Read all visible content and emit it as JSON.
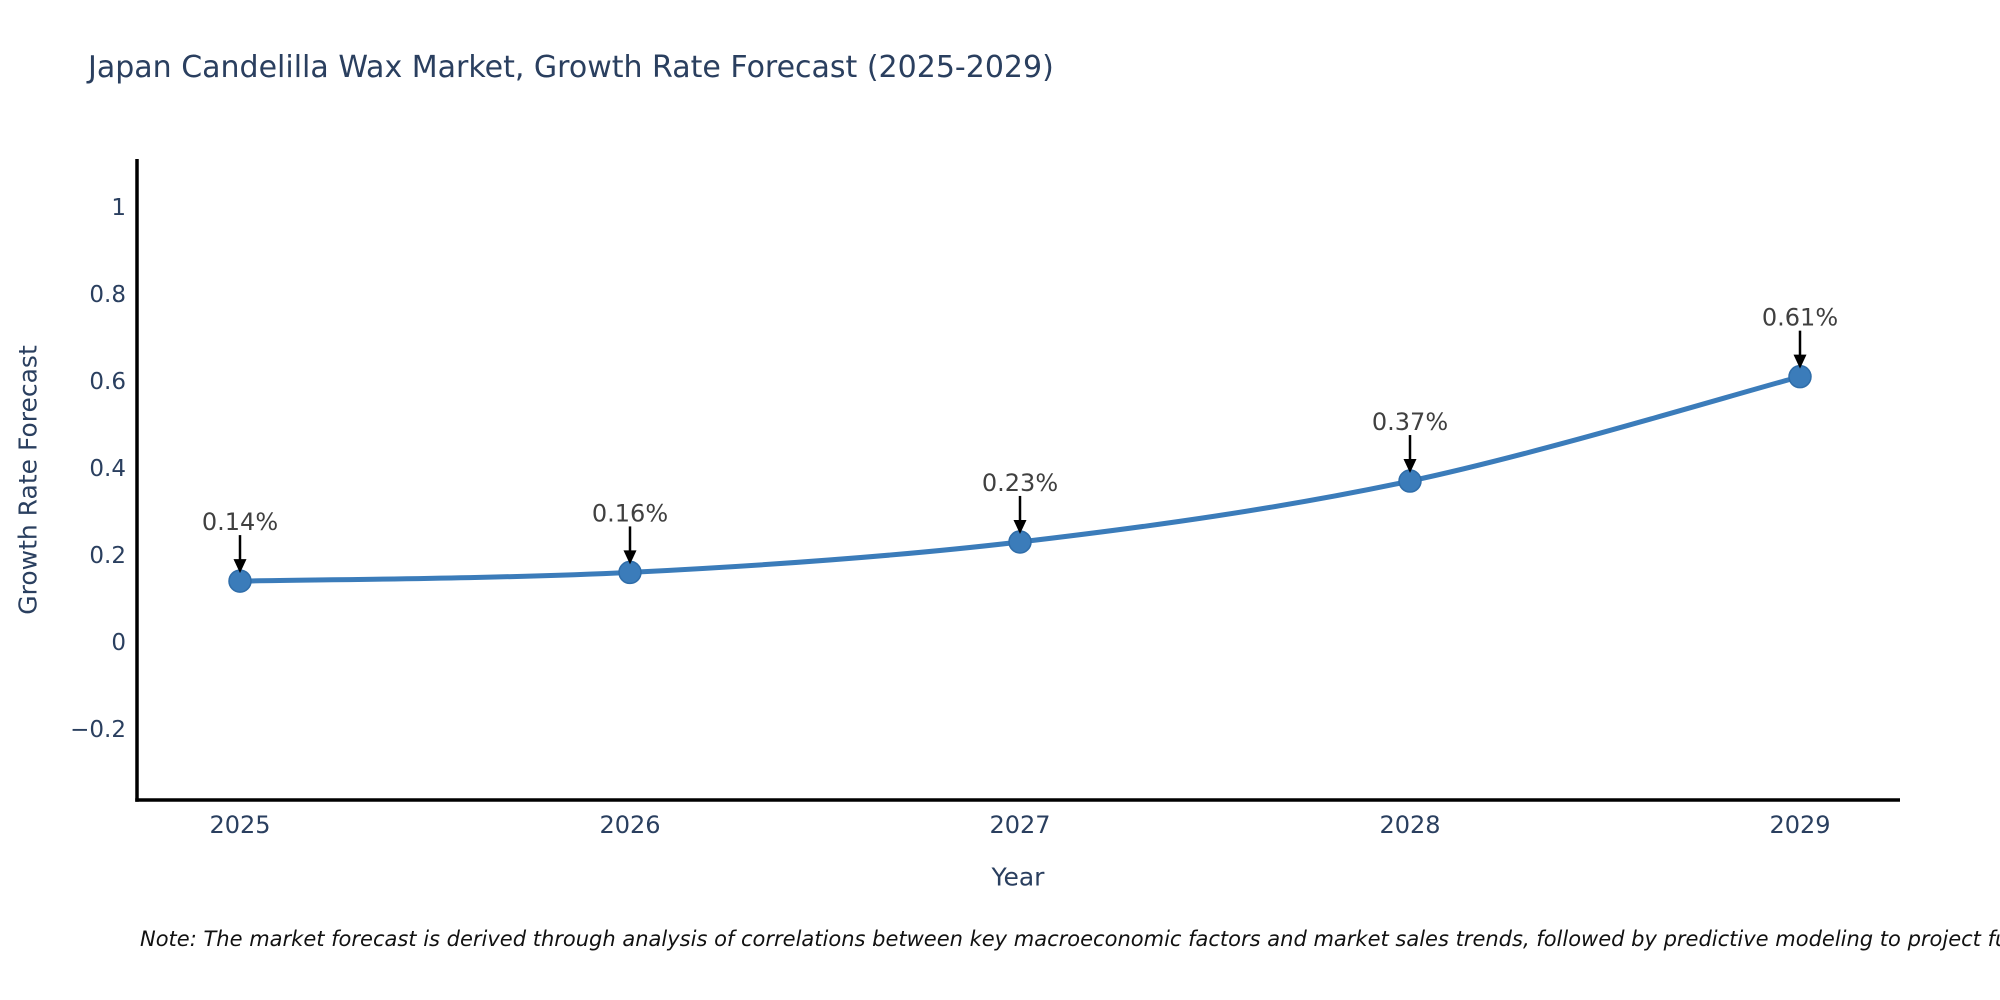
{
  "title": "Japan Candelilla Wax Market, Growth Rate Forecast (2025-2029)",
  "note": "Note: The market forecast is derived through analysis of correlations between key macroeconomic factors and market sales trends, followed by predictive modeling to project future sa",
  "chart_data": {
    "type": "line",
    "title": "Japan Candelilla Wax Market, Growth Rate Forecast (2025-2029)",
    "xlabel": "Year",
    "ylabel": "Growth Rate Forecast",
    "x": [
      2025,
      2026,
      2027,
      2028,
      2029
    ],
    "xtick_labels": [
      "2025",
      "2026",
      "2027",
      "2028",
      "2029"
    ],
    "series": [
      {
        "name": "Growth Rate Forecast",
        "values": [
          0.14,
          0.16,
          0.23,
          0.37,
          0.61
        ],
        "point_labels": [
          "0.14%",
          "0.16%",
          "0.23%",
          "0.37%",
          "0.61%"
        ]
      }
    ],
    "yticks": [
      1,
      0.8,
      0.6,
      0.4,
      0.2,
      0,
      -0.2
    ],
    "ytick_labels": [
      "1",
      "0.8",
      "0.6",
      "0.4",
      "0.2",
      "0",
      "−0.2"
    ],
    "ylim": [
      -0.37,
      1.1
    ],
    "grid": false,
    "legend_position": "none",
    "colors": {
      "line": "#3b7cba",
      "marker_fill": "#3b7cba",
      "marker_edge": "#2f6da9",
      "axis": "#000000",
      "tick_text": "#2a3f5f",
      "title_text": "#2a3f5f",
      "annotation_text": "#404040",
      "annotation_arrow": "#000000"
    }
  }
}
